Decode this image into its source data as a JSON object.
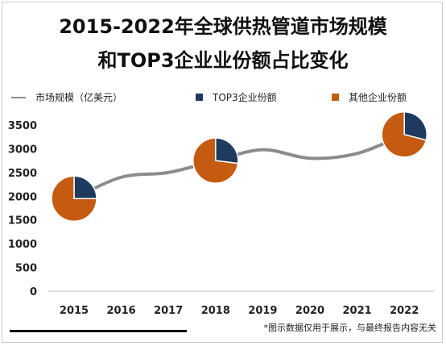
{
  "title_line1": "2015-2022年全球供热管道市场规模",
  "title_line2": "和TOP3企业业份额占比变化",
  "footnote": "*图示数据仅用于展示，与最终报告内容无关",
  "colors": {
    "line": "#8c8c8c",
    "top3": "#1f3a5f",
    "other": "#c55a11"
  },
  "chart_data": {
    "type": "line",
    "categories": [
      "2015",
      "2016",
      "2017",
      "2018",
      "2019",
      "2020",
      "2021",
      "2022"
    ],
    "ylim": [
      0,
      3500
    ],
    "yticks": [
      0,
      500,
      1000,
      1500,
      2000,
      2500,
      3000,
      3500
    ],
    "grid": false,
    "legend_position": "top",
    "series": [
      {
        "name": "市场规模（亿美元）",
        "values": [
          1950,
          2400,
          2500,
          2750,
          2980,
          2800,
          2900,
          3300
        ]
      }
    ],
    "pies": [
      {
        "year": "2015",
        "shares": [
          {
            "name": "TOP3企业份额",
            "value": 25
          },
          {
            "name": "其他企业份额",
            "value": 75
          }
        ]
      },
      {
        "year": "2018",
        "shares": [
          {
            "name": "TOP3企业份额",
            "value": 27
          },
          {
            "name": "其他企业份额",
            "value": 73
          }
        ]
      },
      {
        "year": "2022",
        "shares": [
          {
            "name": "TOP3企业份额",
            "value": 29
          },
          {
            "name": "其他企业份额",
            "value": 71
          }
        ]
      }
    ],
    "legend": [
      "市场规模（亿美元）",
      "TOP3企业份额",
      "其他企业份额"
    ]
  }
}
